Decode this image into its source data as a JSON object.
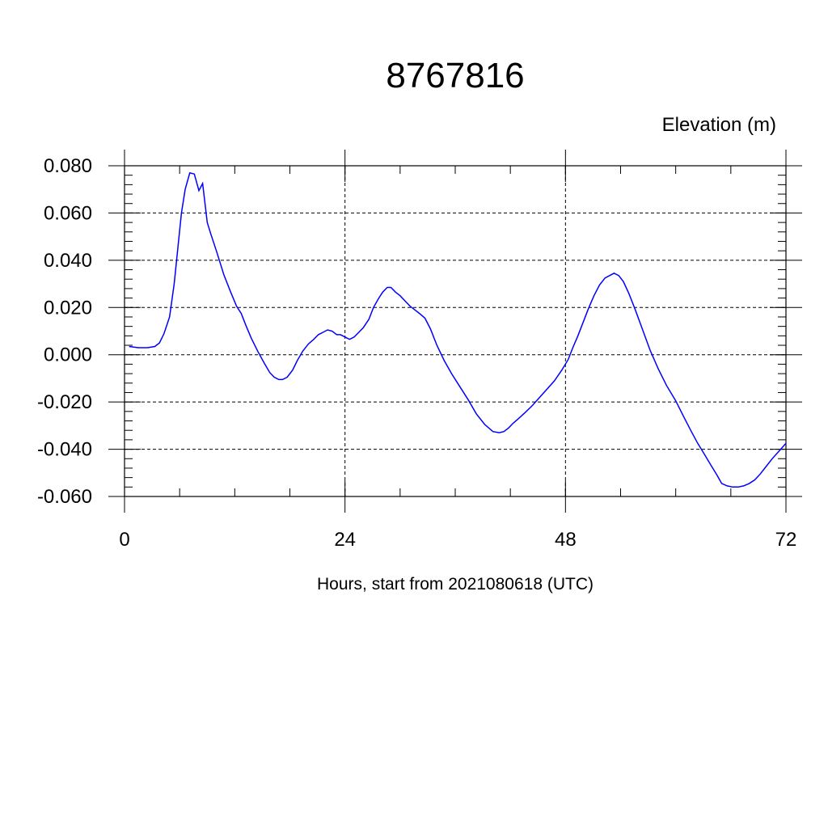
{
  "chart_data": {
    "type": "line",
    "title": "8767816",
    "units_label": "Elevation (m)",
    "xlabel": "Hours, start from 2021080618 (UTC)",
    "ylabel": "",
    "xlim": [
      0,
      72
    ],
    "ylim": [
      -0.06,
      0.08
    ],
    "x_ticks": [
      0,
      24,
      48,
      72
    ],
    "x_tick_labels": [
      "0",
      "24",
      "48",
      "72"
    ],
    "y_ticks": [
      -0.06,
      -0.04,
      -0.02,
      0.0,
      0.02,
      0.04,
      0.06,
      0.08
    ],
    "y_tick_labels": [
      "-0.060",
      "-0.040",
      "-0.020",
      "0.000",
      "0.020",
      "0.040",
      "0.060",
      "0.080"
    ],
    "grid": true,
    "color": "#0000ff",
    "series": [
      {
        "x": [
          0.5,
          1.5,
          2.5,
          3.3,
          3.8,
          4.3,
          4.9,
          5.4,
          5.8,
          6.2,
          6.6,
          7.1,
          7.6,
          8.1,
          8.5,
          9.0,
          9.4,
          10.0,
          10.8,
          11.5,
          12.2,
          12.7,
          13.2,
          13.8,
          14.5,
          15.2,
          15.8,
          16.3,
          16.8,
          17.2,
          17.7,
          18.3,
          18.8,
          19.4,
          20.0,
          20.6,
          21.1,
          21.6,
          22.1,
          22.6,
          23.1,
          23.5,
          24.0,
          24.5,
          25.0,
          25.5,
          26.0,
          26.6,
          27.1,
          27.6,
          28.1,
          28.6,
          29.0,
          29.5,
          30.0,
          30.6,
          31.1,
          31.6,
          32.1,
          32.7,
          33.3,
          34.0,
          34.8,
          35.6,
          36.5,
          37.4,
          38.3,
          39.2,
          40.1,
          40.8,
          41.3,
          41.8,
          42.3,
          42.9,
          43.6,
          44.4,
          45.2,
          46.0,
          46.8,
          47.6,
          48.3,
          48.8,
          49.3,
          49.9,
          50.5,
          51.1,
          51.7,
          52.3,
          52.8,
          53.3,
          53.8,
          54.3,
          54.9,
          55.6,
          56.4,
          57.2,
          58.1,
          59.0,
          60.0,
          60.9,
          61.7,
          62.4,
          63.1,
          63.8,
          64.5,
          65.0,
          65.6,
          66.2,
          66.8,
          67.4,
          68.0,
          68.6,
          69.2,
          69.8,
          70.5,
          71.2,
          72.0
        ],
        "y": [
          0.0035,
          0.003,
          0.003,
          0.0035,
          0.005,
          0.009,
          0.016,
          0.03,
          0.045,
          0.06,
          0.07,
          0.077,
          0.0765,
          0.0695,
          0.0725,
          0.056,
          0.051,
          0.044,
          0.034,
          0.027,
          0.0205,
          0.0175,
          0.0125,
          0.007,
          0.0015,
          -0.0035,
          -0.0075,
          -0.0095,
          -0.0105,
          -0.0105,
          -0.0095,
          -0.0065,
          -0.0025,
          0.0015,
          0.0045,
          0.0065,
          0.0085,
          0.0095,
          0.0105,
          0.01,
          0.0085,
          0.0085,
          0.0075,
          0.0065,
          0.0075,
          0.0095,
          0.0115,
          0.015,
          0.02,
          0.0235,
          0.0265,
          0.0285,
          0.0285,
          0.0265,
          0.025,
          0.0225,
          0.0205,
          0.019,
          0.0175,
          0.0155,
          0.011,
          0.004,
          -0.0025,
          -0.008,
          -0.0135,
          -0.019,
          -0.025,
          -0.0295,
          -0.0325,
          -0.033,
          -0.0325,
          -0.031,
          -0.029,
          -0.027,
          -0.0245,
          -0.0215,
          -0.018,
          -0.0145,
          -0.011,
          -0.0065,
          -0.002,
          0.003,
          0.0075,
          0.0135,
          0.0195,
          0.025,
          0.0295,
          0.0325,
          0.0335,
          0.0345,
          0.0335,
          0.031,
          0.026,
          0.019,
          0.0105,
          0.002,
          -0.006,
          -0.013,
          -0.0195,
          -0.0265,
          -0.0325,
          -0.0375,
          -0.042,
          -0.0465,
          -0.051,
          -0.0545,
          -0.0555,
          -0.056,
          -0.056,
          -0.0555,
          -0.0545,
          -0.053,
          -0.0505,
          -0.0475,
          -0.044,
          -0.041,
          -0.0375
        ]
      }
    ]
  }
}
